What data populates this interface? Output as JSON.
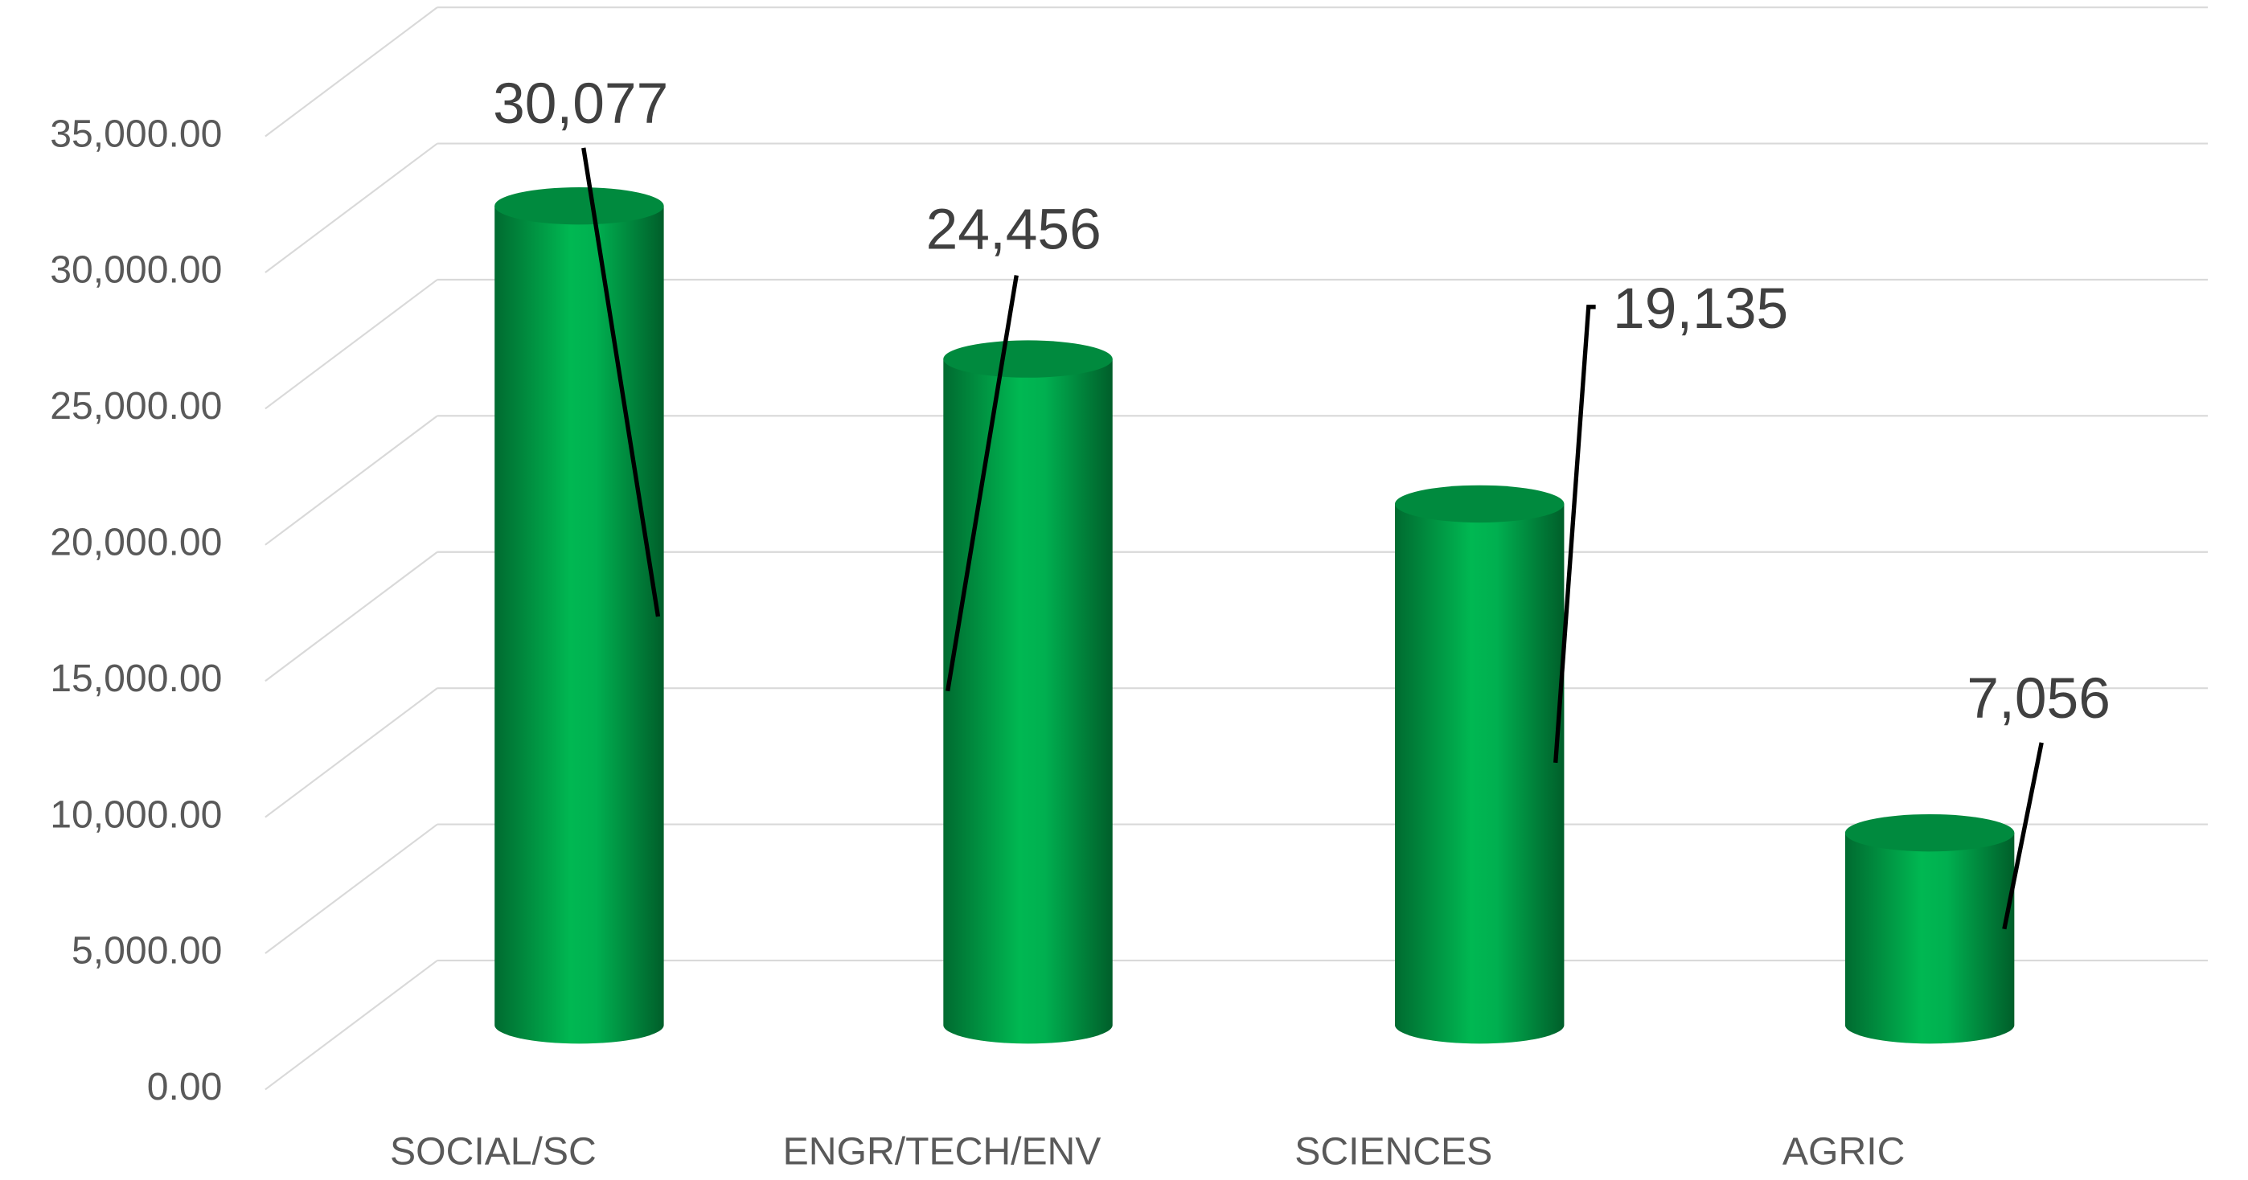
{
  "chart_data": {
    "type": "bar3d",
    "categories": [
      "SOCIAL/SC",
      "ENGR/TECH/ENV",
      "SCIENCES",
      "AGRIC"
    ],
    "values": [
      30077,
      24456,
      19135,
      7056
    ],
    "value_labels": [
      "30,077",
      "24,456",
      "19,135",
      "7,056"
    ],
    "color": "#00b050",
    "ylim": [
      0,
      35000
    ],
    "yticks": [
      {
        "value": 0,
        "label": "0.00"
      },
      {
        "value": 5000,
        "label": "5,000.00"
      },
      {
        "value": 10000,
        "label": "10,000.00"
      },
      {
        "value": 15000,
        "label": "15,000.00"
      },
      {
        "value": 20000,
        "label": "20,000.00"
      },
      {
        "value": 25000,
        "label": "25,000.00"
      },
      {
        "value": 30000,
        "label": "30,000.00"
      },
      {
        "value": 35000,
        "label": "35,000.00"
      }
    ],
    "grid": true
  }
}
